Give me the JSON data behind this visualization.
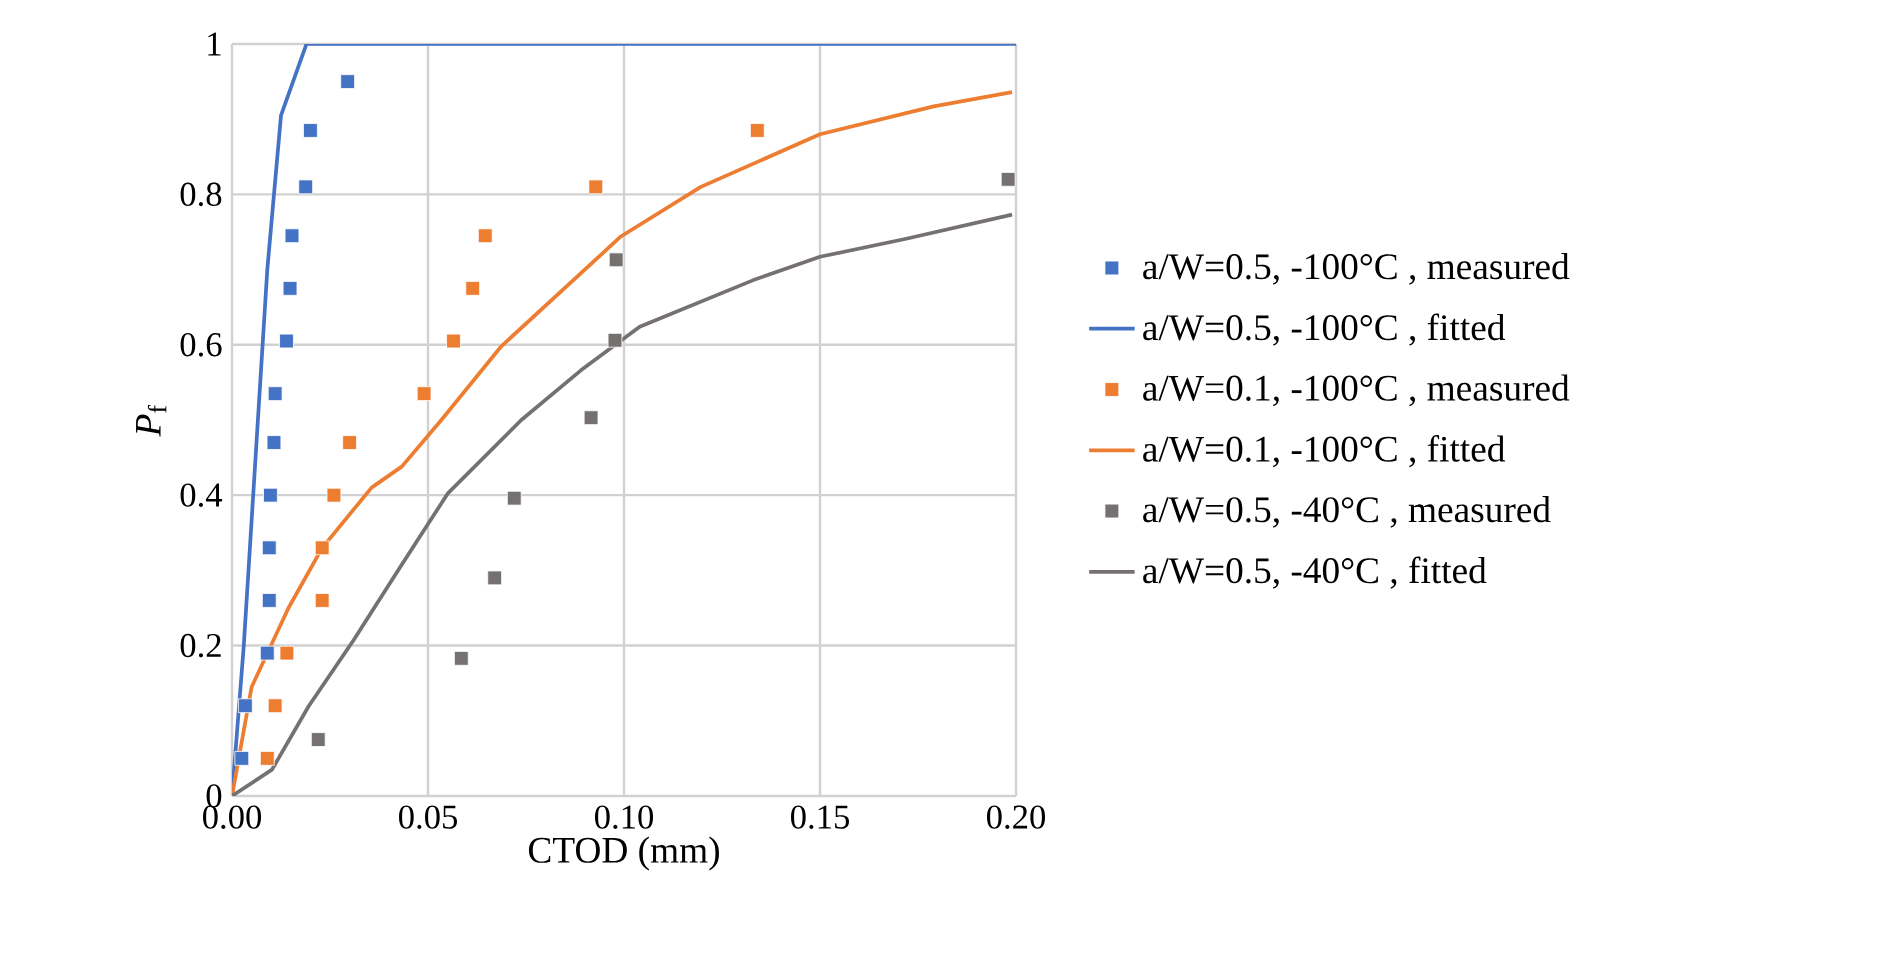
{
  "chart_data": {
    "type": "scatter",
    "xlabel": "CTOD (mm)",
    "ylabel": "*P*$_{f}$",
    "xlim": [
      0,
      0.2
    ],
    "ylim": [
      0,
      1
    ],
    "xticks": [
      {
        "value": 0,
        "label": "0.00"
      },
      {
        "value": 0.05,
        "label": "0.05"
      },
      {
        "value": 0.1,
        "label": "0.10"
      },
      {
        "value": 0.15,
        "label": "0.15"
      },
      {
        "value": 0.2,
        "label": "0.20"
      }
    ],
    "yticks": [
      0,
      0.2,
      0.4,
      0.6,
      0.8,
      1
    ],
    "grid": true,
    "legend": "right",
    "series": [
      {
        "name": "a/W=0.5,  -100°C , measured",
        "marker": "square",
        "color": "#4472c4",
        "x": [
          0.0025,
          0.0034,
          0.009,
          0.0095,
          0.0095,
          0.0098,
          0.0107,
          0.011,
          0.0139,
          0.0148,
          0.0153,
          0.0188,
          0.02,
          0.0295
        ],
        "values": [
          0.05,
          0.12,
          0.19,
          0.26,
          0.33,
          0.4,
          0.47,
          0.535,
          0.605,
          0.675,
          0.745,
          0.81,
          0.885,
          0.95
        ]
      },
      {
        "name": "a/W=0.5, -100°C , fitted",
        "type": "line",
        "color": "#4472c4",
        "x": [
          0,
          0.003,
          0.006,
          0.009,
          0.0125,
          0.019,
          0.2
        ],
        "values": [
          0,
          0.2,
          0.45,
          0.7,
          0.905,
          1,
          1
        ]
      },
      {
        "name": "a/W=0.1, -100°C , measured",
        "marker": "square",
        "color": "#ed7d31",
        "x": [
          0.009,
          0.011,
          0.014,
          0.023,
          0.023,
          0.026,
          0.03,
          0.049,
          0.0565,
          0.0614,
          0.0646,
          0.0928,
          0.134
        ],
        "values": [
          0.05,
          0.12,
          0.19,
          0.26,
          0.33,
          0.4,
          0.47,
          0.535,
          0.605,
          0.675,
          0.745,
          0.81,
          0.885
        ]
      },
      {
        "name": "a/W=0.1, -100°C , fitted",
        "type": "line",
        "color": "#ed7d31",
        "x": [
          0,
          0.005,
          0.0144,
          0.023,
          0.0356,
          0.0433,
          0.0534,
          0.0687,
          0.0992,
          0.1196,
          0.15,
          0.179,
          0.199
        ],
        "values": [
          0,
          0.145,
          0.25,
          0.33,
          0.41,
          0.438,
          0.5,
          0.598,
          0.744,
          0.81,
          0.88,
          0.917,
          0.936
        ]
      },
      {
        "name": "a/W=0.5, -40°C , measured",
        "marker": "square",
        "color": "#767171",
        "x": [
          0.022,
          0.0585,
          0.067,
          0.072,
          0.0916,
          0.0977,
          0.098,
          0.198
        ],
        "values": [
          0.075,
          0.183,
          0.29,
          0.396,
          0.503,
          0.606,
          0.713,
          0.82
        ]
      },
      {
        "name": "a/W=0.5, -40°C , fitted",
        "type": "line",
        "color": "#767171",
        "x": [
          0,
          0.0102,
          0.0195,
          0.031,
          0.043,
          0.055,
          0.0738,
          0.089,
          0.104,
          0.133,
          0.15,
          0.172,
          0.199
        ],
        "values": [
          0,
          0.035,
          0.119,
          0.207,
          0.305,
          0.402,
          0.5,
          0.566,
          0.624,
          0.686,
          0.717,
          0.741,
          0.773
        ]
      }
    ]
  }
}
